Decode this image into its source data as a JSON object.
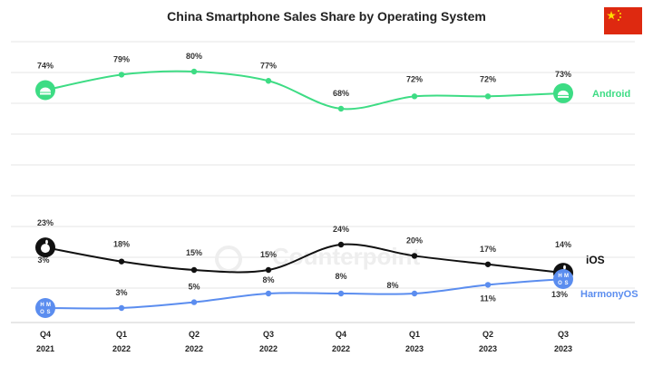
{
  "title": "China Smartphone Sales Share by Operating System",
  "flag_icon": "china-flag-icon",
  "colors": {
    "android": "#3ddc84",
    "ios": "#111111",
    "harmony": "#5b8def",
    "grid": "#e6e6e6"
  },
  "chart_data": {
    "type": "line",
    "categories": [
      [
        "Q4",
        "2021"
      ],
      [
        "Q1",
        "2022"
      ],
      [
        "Q2",
        "2022"
      ],
      [
        "Q3",
        "2022"
      ],
      [
        "Q4",
        "2022"
      ],
      [
        "Q1",
        "2023"
      ],
      [
        "Q2",
        "2023"
      ],
      [
        "Q3",
        "2023"
      ]
    ],
    "series": [
      {
        "name": "Android",
        "values": [
          74,
          79,
          80,
          77,
          68,
          72,
          72,
          73
        ],
        "labels": [
          "74%",
          "79%",
          "80%",
          "77%",
          "68%",
          "72%",
          "72%",
          "73%"
        ]
      },
      {
        "name": "iOS",
        "values": [
          23,
          18,
          15,
          15,
          24,
          20,
          17,
          14
        ],
        "labels": [
          "23%",
          "18%",
          "15%",
          "15%",
          "24%",
          "20%",
          "17%",
          "14%"
        ]
      },
      {
        "name": "HarmonyOS",
        "values": [
          3,
          3,
          5,
          8,
          8,
          8,
          11,
          13
        ],
        "labels": [
          "3%",
          "3%",
          "5%",
          "8%",
          "8%",
          "8%",
          "11%",
          "13%"
        ]
      }
    ],
    "ylim": [
      0,
      85
    ],
    "grid": true,
    "watermark": "Counterpoint",
    "harmony_badge": [
      "H",
      "M",
      "O",
      "S"
    ]
  }
}
